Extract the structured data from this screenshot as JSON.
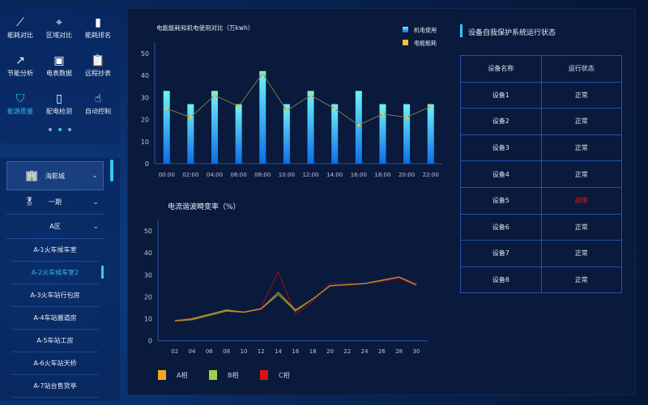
{
  "menu": {
    "items": [
      {
        "label": "能耗对比",
        "icon": "trend-line-icon",
        "glyph": "⟋"
      },
      {
        "label": "区域对比",
        "icon": "location-pin-icon",
        "glyph": "⌖"
      },
      {
        "label": "能耗排名",
        "icon": "bar-chart-icon",
        "glyph": "▮"
      },
      {
        "label": "节能分析",
        "icon": "growth-chart-icon",
        "glyph": "↗"
      },
      {
        "label": "电表数据",
        "icon": "meter-icon",
        "glyph": "▣"
      },
      {
        "label": "远程抄表",
        "icon": "clipboard-icon",
        "glyph": "📋"
      },
      {
        "label": "能源质量",
        "icon": "shield-check-icon",
        "glyph": "⛉",
        "active": true
      },
      {
        "label": "配电检测",
        "icon": "battery-icon",
        "glyph": "▯"
      },
      {
        "label": "自动控制",
        "icon": "hand-control-icon",
        "glyph": "☝"
      }
    ]
  },
  "tree": {
    "city": "海影城",
    "phase": "一期",
    "zone": "A区",
    "leaves": [
      "A-1火车候车室",
      "A-2火车候车室2",
      "A-3火车站行包房",
      "A-4车站搬道房",
      "A-5车站工房",
      "A-6火车站天桥",
      "A-7站台售货亭"
    ],
    "selected": 1
  },
  "chart_data": [
    {
      "type": "bar",
      "title": "电能能耗和机电使用对比（万kwh）",
      "categories": [
        "00:00",
        "02:00",
        "04:00",
        "06:00",
        "08:00",
        "10:00",
        "12:00",
        "14:00",
        "16:00",
        "18:00",
        "20:00",
        "22:00"
      ],
      "series": [
        {
          "name": "机电使用",
          "type": "bar",
          "values": [
            33,
            27,
            33,
            27,
            42,
            27,
            33,
            27,
            33,
            27,
            27,
            27
          ],
          "color": "#4fd8f4"
        },
        {
          "name": "电能能耗",
          "type": "line",
          "values": [
            25,
            21,
            31,
            26,
            41,
            24,
            31,
            25,
            17.5,
            22.5,
            21,
            26
          ],
          "color": "#f2c230"
        }
      ],
      "ylim": [
        0,
        50
      ],
      "yticks": [
        0,
        10,
        20,
        30,
        40,
        50
      ],
      "legend": "top-right"
    },
    {
      "type": "line",
      "title": "电流谐波畸变率（%）",
      "categories": [
        "02",
        "04",
        "06",
        "08",
        "10",
        "12",
        "14",
        "16",
        "18",
        "20",
        "22",
        "24",
        "26",
        "28",
        "30"
      ],
      "series": [
        {
          "name": "A相",
          "color": "#f5a623",
          "values": [
            9,
            10,
            12,
            14,
            13,
            14.5,
            22,
            14,
            19,
            25,
            25.5,
            26,
            27.5,
            29,
            25.5
          ]
        },
        {
          "name": "B相",
          "color": "#9ad14b",
          "values": [
            9,
            9.5,
            11.5,
            13.5,
            13,
            14.5,
            21,
            13.5,
            19,
            25,
            25.5,
            26,
            27.5,
            29,
            25.5
          ]
        },
        {
          "name": "C相",
          "color": "#e01010",
          "values": [
            9.5,
            10,
            12,
            14,
            13,
            15,
            31.5,
            12,
            18,
            26,
            26,
            26,
            27,
            28.5,
            25
          ]
        }
      ],
      "ylim": [
        0,
        50
      ],
      "yticks": [
        0,
        10,
        20,
        30,
        40,
        50
      ],
      "legend": "bottom"
    }
  ],
  "status": {
    "title": "设备自我保护系统运行状态",
    "headers": [
      "设备名称",
      "运行状态"
    ],
    "rows": [
      [
        "设备1",
        "正常"
      ],
      [
        "设备2",
        "正常"
      ],
      [
        "设备3",
        "正常"
      ],
      [
        "设备4",
        "正常"
      ],
      [
        "设备5",
        "故障"
      ],
      [
        "设备6",
        "正常"
      ],
      [
        "设备7",
        "正常"
      ],
      [
        "设备8",
        "正常"
      ]
    ],
    "fault_color": "#e01818"
  }
}
